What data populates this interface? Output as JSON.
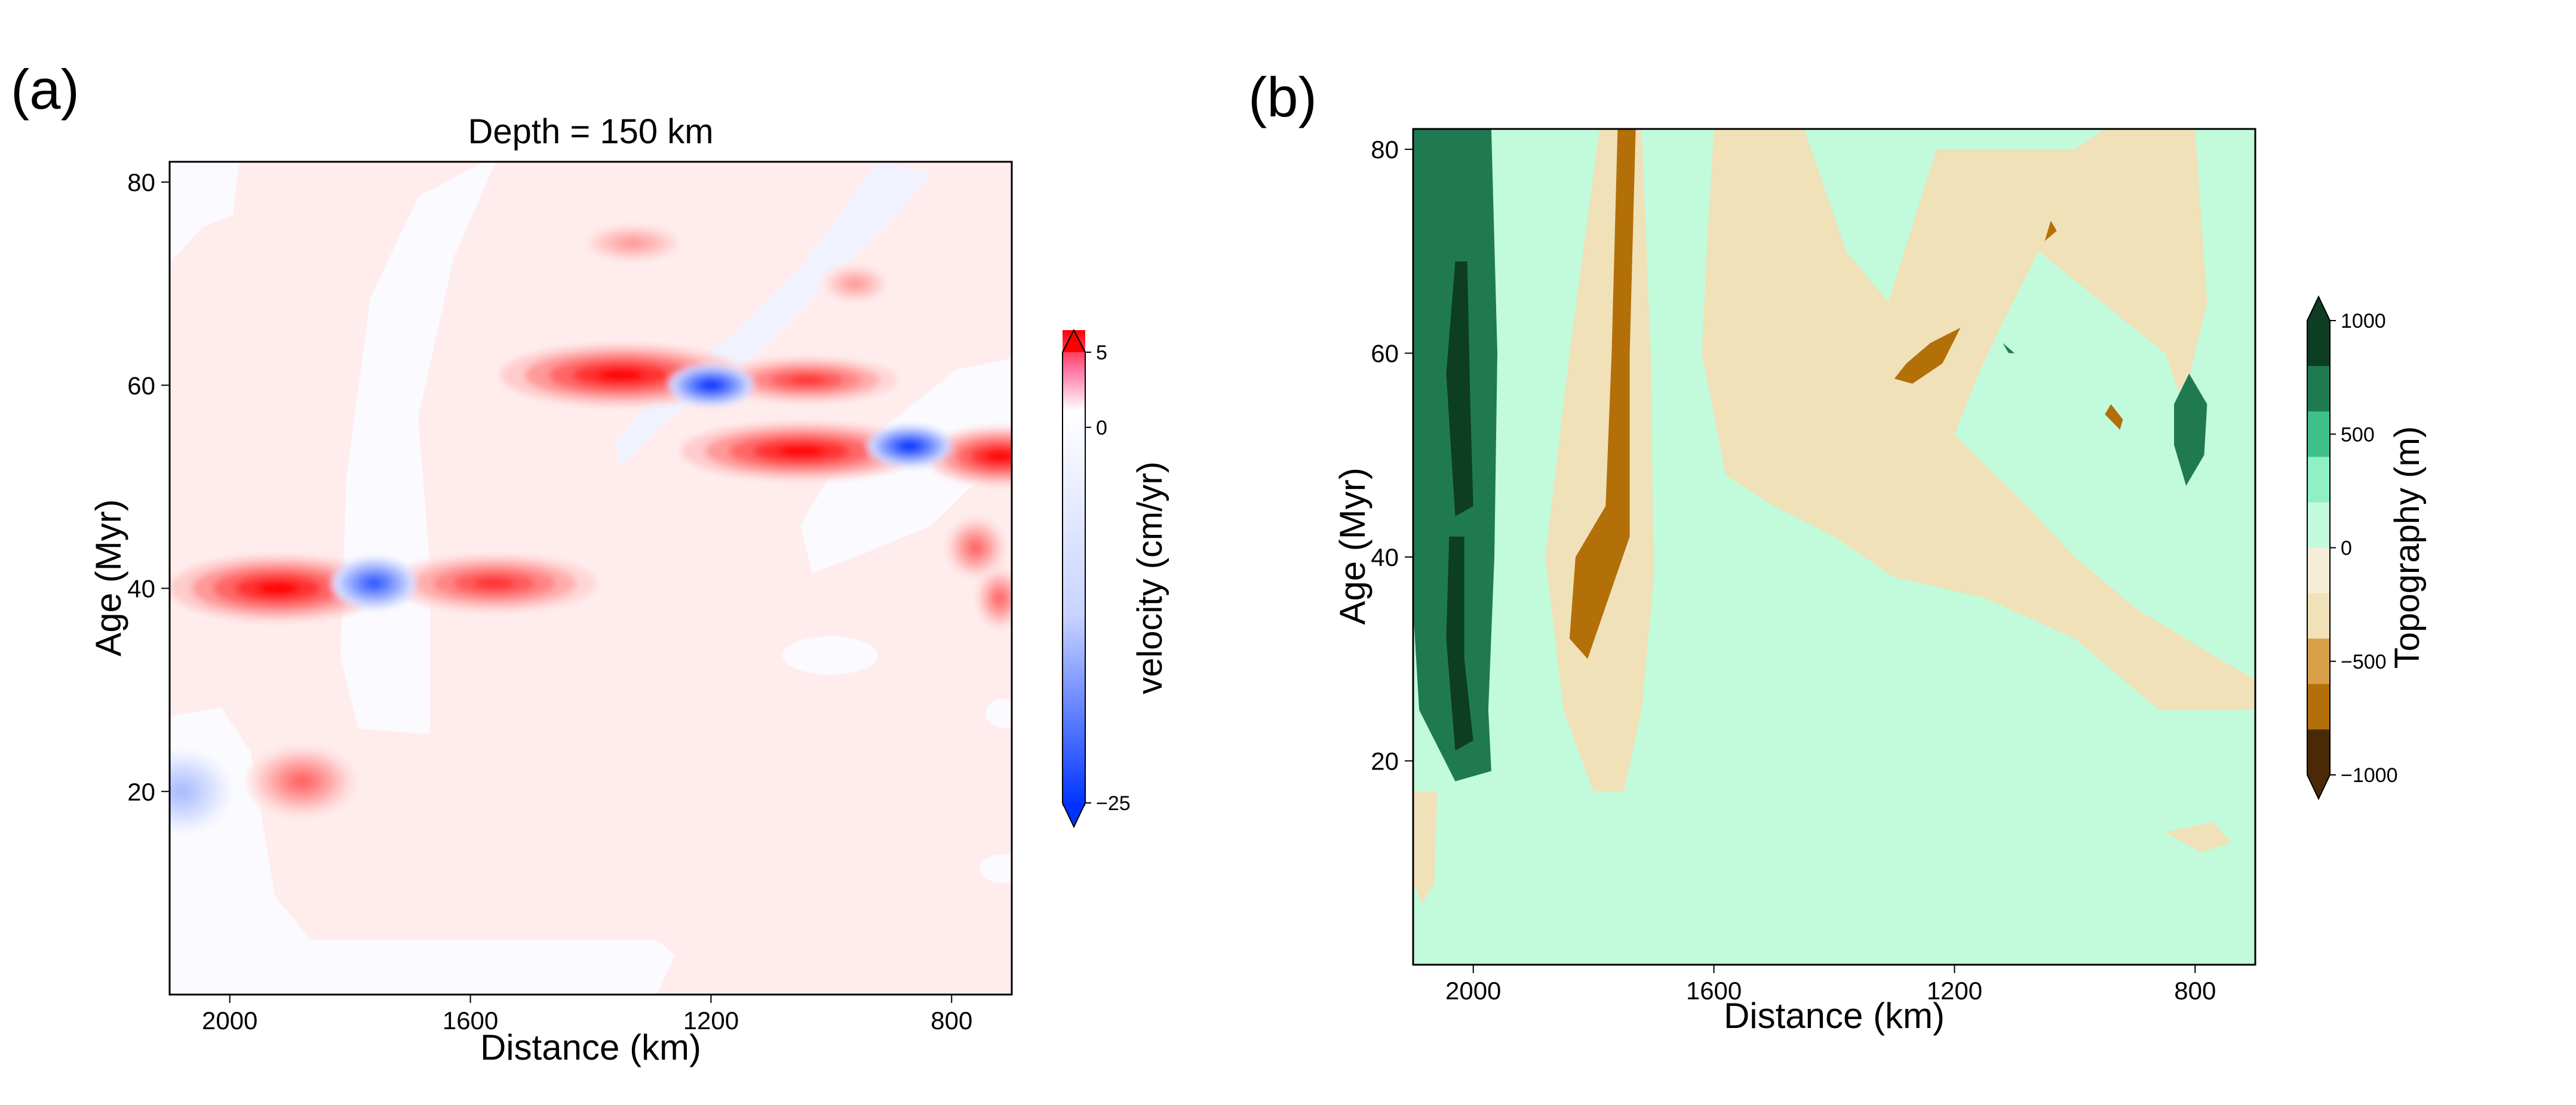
{
  "chart_data": [
    {
      "panel_label": "(a)",
      "type": "heatmap",
      "title": "Depth = 150 km",
      "xlabel": "Distance (km)",
      "ylabel": "Age (Myr)",
      "xlim": [
        2100,
        700
      ],
      "ylim": [
        0,
        82
      ],
      "xticks": [
        {
          "value": 2000,
          "label": "2000"
        },
        {
          "value": 1600,
          "label": "1600"
        },
        {
          "value": 1200,
          "label": "1200"
        },
        {
          "value": 800,
          "label": "800"
        }
      ],
      "yticks": [
        {
          "value": 20,
          "label": "20"
        },
        {
          "value": 40,
          "label": "40"
        },
        {
          "value": 60,
          "label": "60"
        },
        {
          "value": 80,
          "label": "80"
        }
      ],
      "background_value": 1,
      "features": [
        {
          "kind": "positive",
          "x": 1920,
          "y": 40,
          "rx": 180,
          "ry": 3.2,
          "peak": 5
        },
        {
          "kind": "positive",
          "x": 1560,
          "y": 40.5,
          "rx": 170,
          "ry": 2.8,
          "peak": 4
        },
        {
          "kind": "positive",
          "x": 1880,
          "y": 21,
          "rx": 90,
          "ry": 3.5,
          "peak": 3
        },
        {
          "kind": "positive",
          "x": 1350,
          "y": 61,
          "rx": 200,
          "ry": 3.0,
          "peak": 5
        },
        {
          "kind": "positive",
          "x": 1040,
          "y": 60.5,
          "rx": 150,
          "ry": 2.2,
          "peak": 4
        },
        {
          "kind": "positive",
          "x": 1050,
          "y": 53.5,
          "rx": 200,
          "ry": 2.8,
          "peak": 5
        },
        {
          "kind": "positive",
          "x": 720,
          "y": 53,
          "rx": 120,
          "ry": 2.8,
          "peak": 5
        },
        {
          "kind": "positive",
          "x": 1330,
          "y": 74,
          "rx": 90,
          "ry": 2.0,
          "peak": 2
        },
        {
          "kind": "positive",
          "x": 960,
          "y": 70,
          "rx": 60,
          "ry": 2.0,
          "peak": 2
        },
        {
          "kind": "positive",
          "x": 760,
          "y": 44,
          "rx": 50,
          "ry": 3.0,
          "peak": 3
        },
        {
          "kind": "positive",
          "x": 720,
          "y": 39,
          "rx": 40,
          "ry": 3.0,
          "peak": 3
        },
        {
          "kind": "negative",
          "x": 1200,
          "y": 60,
          "rx": 70,
          "ry": 2.0,
          "peak": -25
        },
        {
          "kind": "negative",
          "x": 870,
          "y": 54,
          "rx": 70,
          "ry": 2.0,
          "peak": -25
        },
        {
          "kind": "negative",
          "x": 1760,
          "y": 40.5,
          "rx": 70,
          "ry": 2.5,
          "peak": -20
        },
        {
          "kind": "negative",
          "x": 2080,
          "y": 20,
          "rx": 80,
          "ry": 4.0,
          "peak": -8
        }
      ],
      "colorbar": {
        "label": "velocity (cm/yr)",
        "min": -25,
        "max": 5,
        "ticks": [
          {
            "value": 5,
            "label": "5"
          },
          {
            "value": 0,
            "label": "0"
          },
          {
            "value": -25,
            "label": "−25"
          }
        ],
        "colors": {
          "max": "#ff0000",
          "mid": "#ffffff",
          "min": "#0033ff"
        }
      }
    },
    {
      "panel_label": "(b)",
      "type": "heatmap",
      "title": "",
      "xlabel": "Distance (km)",
      "ylabel": "Age (Myr)",
      "xlim": [
        2100,
        700
      ],
      "ylim": [
        0,
        82
      ],
      "xticks": [
        {
          "value": 2000,
          "label": "2000"
        },
        {
          "value": 1600,
          "label": "1600"
        },
        {
          "value": 1200,
          "label": "1200"
        },
        {
          "value": 800,
          "label": "800"
        }
      ],
      "yticks": [
        {
          "value": 20,
          "label": "20"
        },
        {
          "value": 40,
          "label": "40"
        },
        {
          "value": 60,
          "label": "60"
        },
        {
          "value": 80,
          "label": "80"
        }
      ],
      "background_value": 200,
      "regions": [
        {
          "value": 700,
          "points": [
            [
              2100,
              82
            ],
            [
              1970,
              82
            ],
            [
              1960,
              60
            ],
            [
              1965,
              40
            ],
            [
              1975,
              25
            ],
            [
              1970,
              19
            ],
            [
              2030,
              18
            ],
            [
              2090,
              25
            ],
            [
              2100,
              35
            ]
          ]
        },
        {
          "value": 1000,
          "points": [
            [
              2030,
              69
            ],
            [
              2010,
              69
            ],
            [
              2005,
              55
            ],
            [
              2000,
              45
            ],
            [
              2030,
              44
            ],
            [
              2045,
              58
            ]
          ]
        },
        {
          "value": 1000,
          "points": [
            [
              2040,
              42
            ],
            [
              2015,
              42
            ],
            [
              2015,
              30
            ],
            [
              2000,
              22
            ],
            [
              2030,
              21
            ],
            [
              2045,
              32
            ]
          ]
        },
        {
          "value": -300,
          "points": [
            [
              2100,
              17
            ],
            [
              2060,
              17
            ],
            [
              2065,
              8
            ],
            [
              2085,
              6
            ],
            [
              2100,
              8
            ]
          ]
        },
        {
          "value": -300,
          "points": [
            [
              1760,
              82
            ],
            [
              1720,
              82
            ],
            [
              1705,
              60
            ],
            [
              1700,
              38
            ],
            [
              1720,
              25
            ],
            [
              1750,
              17
            ],
            [
              1800,
              17
            ],
            [
              1850,
              25
            ],
            [
              1880,
              40
            ],
            [
              1840,
              60
            ],
            [
              1790,
              82
            ]
          ]
        },
        {
          "value": -700,
          "points": [
            [
              1760,
              82
            ],
            [
              1730,
              82
            ],
            [
              1740,
              60
            ],
            [
              1740,
              42
            ],
            [
              1810,
              30
            ],
            [
              1840,
              32
            ],
            [
              1830,
              40
            ],
            [
              1780,
              45
            ],
            [
              1770,
              60
            ]
          ]
        },
        {
          "value": -300,
          "points": [
            [
              1600,
              82
            ],
            [
              1450,
              82
            ],
            [
              1380,
              70
            ],
            [
              1310,
              65
            ],
            [
              1230,
              80
            ],
            [
              1000,
              80
            ],
            [
              950,
              82
            ],
            [
              800,
              82
            ],
            [
              780,
              65
            ],
            [
              820,
              55
            ],
            [
              850,
              60
            ],
            [
              1060,
              70
            ],
            [
              1120,
              63
            ],
            [
              1160,
              58
            ],
            [
              1200,
              52
            ],
            [
              1080,
              45
            ],
            [
              1000,
              40
            ],
            [
              900,
              35
            ],
            [
              760,
              30
            ],
            [
              700,
              28
            ],
            [
              700,
              25
            ],
            [
              860,
              25
            ],
            [
              1000,
              32
            ],
            [
              1150,
              36
            ],
            [
              1300,
              38
            ],
            [
              1400,
              42
            ],
            [
              1500,
              45
            ],
            [
              1580,
              48
            ],
            [
              1620,
              60
            ],
            [
              1610,
              72
            ]
          ]
        },
        {
          "value": 700,
          "points": [
            [
              835,
              55
            ],
            [
              810,
              58
            ],
            [
              780,
              55
            ],
            [
              785,
              50
            ],
            [
              815,
              47
            ],
            [
              835,
              51
            ]
          ]
        },
        {
          "value": -700,
          "points": [
            [
              1190,
              62.5
            ],
            [
              1240,
              61
            ],
            [
              1280,
              59
            ],
            [
              1300,
              57.5
            ],
            [
              1270,
              57
            ],
            [
              1220,
              59
            ]
          ]
        },
        {
          "value": -700,
          "points": [
            [
              920,
              53.5
            ],
            [
              940,
              55
            ],
            [
              950,
              54
            ],
            [
              925,
              52.5
            ]
          ]
        },
        {
          "value": -700,
          "points": [
            [
              1040,
              73
            ],
            [
              1030,
              72
            ],
            [
              1050,
              71
            ]
          ]
        },
        {
          "value": 700,
          "points": [
            [
              1120,
              61
            ],
            [
              1100,
              60
            ],
            [
              1110,
              60
            ]
          ]
        },
        {
          "value": -300,
          "points": [
            [
              850,
              13
            ],
            [
              770,
              14
            ],
            [
              740,
              12
            ],
            [
              790,
              11
            ]
          ]
        }
      ],
      "colorbar": {
        "label": "Topography (m)",
        "min": -1000,
        "max": 1000,
        "ticks": [
          {
            "value": 1000,
            "label": "1000"
          },
          {
            "value": 500,
            "label": "500"
          },
          {
            "value": 0,
            "label": "0"
          },
          {
            "value": -500,
            "label": "−500"
          },
          {
            "value": -1000,
            "label": "−1000"
          }
        ],
        "levels": [
          {
            "from": 800,
            "to": 1000,
            "color": "#0d3d22"
          },
          {
            "from": 600,
            "to": 800,
            "color": "#1f7a52"
          },
          {
            "from": 400,
            "to": 600,
            "color": "#3fc08a"
          },
          {
            "from": 200,
            "to": 400,
            "color": "#8ef0c4"
          },
          {
            "from": 0,
            "to": 200,
            "color": "#c2fadc"
          },
          {
            "from": -200,
            "to": 0,
            "color": "#f6edd8"
          },
          {
            "from": -400,
            "to": -200,
            "color": "#f0e1b8"
          },
          {
            "from": -600,
            "to": -400,
            "color": "#d9a04a"
          },
          {
            "from": -800,
            "to": -600,
            "color": "#b36f08"
          },
          {
            "from": -1000,
            "to": -800,
            "color": "#4a2a06"
          }
        ]
      }
    }
  ]
}
